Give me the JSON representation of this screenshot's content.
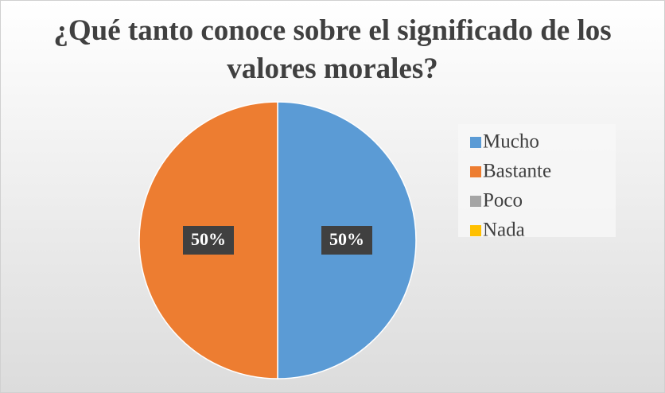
{
  "chart_data": {
    "type": "pie",
    "title": "¿Qué tanto conoce sobre el significado de los valores morales?",
    "categories": [
      "Mucho",
      "Bastante",
      "Poco",
      "Nada"
    ],
    "values": [
      50,
      50,
      0,
      0
    ],
    "value_labels": [
      "50%",
      "50%",
      null,
      null
    ],
    "colors": [
      "#5b9bd5",
      "#ed7d31",
      "#a5a5a5",
      "#ffc000"
    ],
    "legend": "right"
  }
}
